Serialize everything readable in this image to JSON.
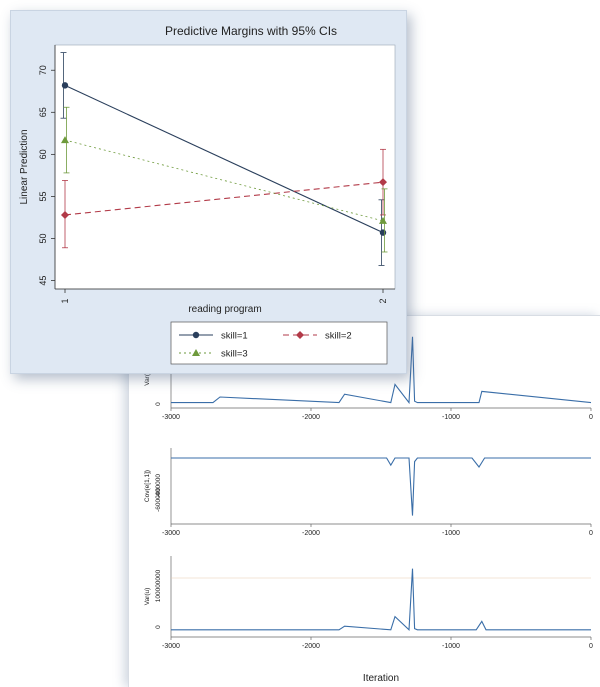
{
  "front": {
    "title": "Predictive Margins with 95% CIs",
    "xlabel": "reading program",
    "ylabel": "Linear Prediction",
    "xticks": [
      "1",
      "2"
    ],
    "yticks": [
      "45",
      "50",
      "55",
      "60",
      "65",
      "70"
    ],
    "ylim": [
      44,
      73
    ],
    "legend": [
      "skill=1",
      "skill=2",
      "skill=3"
    ],
    "colors": {
      "skill1": "#2a3f5c",
      "skill2": "#b23a48",
      "skill3": "#6e9a3c",
      "plot_bg": "#ffffff",
      "frame_bg": "#dfe8f3"
    }
  },
  "chart_data": [
    {
      "type": "line",
      "title": "Predictive Margins with 95% CIs",
      "xlabel": "reading program",
      "ylabel": "Linear Prediction",
      "categories": [
        "1",
        "2"
      ],
      "ylim": [
        44,
        73
      ],
      "grid": false,
      "legend_position": "bottom",
      "series": [
        {
          "name": "skill=1",
          "values": [
            68.2,
            50.7
          ],
          "ci_low": [
            64.3,
            46.8
          ],
          "ci_high": [
            72.1,
            54.6
          ]
        },
        {
          "name": "skill=2",
          "values": [
            52.8,
            56.7
          ],
          "ci_low": [
            48.9,
            52.8
          ],
          "ci_high": [
            56.9,
            60.6
          ]
        },
        {
          "name": "skill=3",
          "values": [
            61.7,
            52.1
          ],
          "ci_low": [
            57.8,
            48.4
          ],
          "ci_high": [
            65.6,
            55.9
          ]
        }
      ]
    },
    {
      "type": "line",
      "ylabel": "Var(e)",
      "xticks": [
        "-3000",
        "-2000",
        "-1000",
        "0"
      ],
      "yticks": [
        "0"
      ],
      "xlim": [
        -3000,
        0
      ],
      "series": [
        {
          "x": [
            -3000,
            -2700,
            -2650,
            -1800,
            -1760,
            -1430,
            -1400,
            -1300,
            -1275,
            -1260,
            -1240,
            -800,
            -780,
            0
          ],
          "values": [
            0.05,
            0.05,
            0.25,
            0.05,
            0.35,
            0.05,
            0.7,
            0.05,
            2.4,
            0.1,
            0.05,
            0.05,
            0.45,
            0.05
          ]
        }
      ]
    },
    {
      "type": "line",
      "ylabel": "Cov(e[1,1])",
      "yticks": [
        "-400000",
        "-600000"
      ],
      "xticks": [
        "-3000",
        "-2000",
        "-1000",
        "0"
      ],
      "xlim": [
        -3000,
        0
      ],
      "series": [
        {
          "x": [
            -3000,
            -1460,
            -1430,
            -1400,
            -1300,
            -1275,
            -1260,
            -1240,
            -850,
            -800,
            -760,
            0
          ],
          "values": [
            0,
            0,
            -0.4,
            0,
            0,
            -3.2,
            -0.2,
            0,
            0,
            -0.5,
            0,
            0
          ]
        }
      ]
    },
    {
      "type": "line",
      "ylabel": "Var(u)",
      "yticks": [
        "0",
        "100000000"
      ],
      "xlabel": "Iteration",
      "xticks": [
        "-3000",
        "-2000",
        "-1000",
        "0"
      ],
      "xlim": [
        -3000,
        0
      ],
      "series": [
        {
          "x": [
            -3000,
            -1800,
            -1760,
            -1430,
            -1400,
            -1300,
            -1275,
            -1260,
            -1240,
            -820,
            -780,
            -750,
            0
          ],
          "values": [
            0.05,
            0.05,
            0.2,
            0.05,
            0.6,
            0.05,
            2.6,
            0.1,
            0.05,
            0.05,
            0.4,
            0.05,
            0.05
          ]
        }
      ]
    }
  ],
  "back": {
    "panels": [
      {
        "ylabel": "Var(e)",
        "yticks": [
          "0"
        ]
      },
      {
        "ylabel": "Cov(e[1,1])",
        "yticks": [
          "-400000",
          "-600000"
        ]
      },
      {
        "ylabel": "Var(u)",
        "yticks": [
          "0",
          "100000000"
        ]
      }
    ],
    "xticks": [
      "-3000",
      "-2000",
      "-1000",
      "0"
    ],
    "xlabel": "Iteration",
    "line_color": "#3a6ea8"
  }
}
